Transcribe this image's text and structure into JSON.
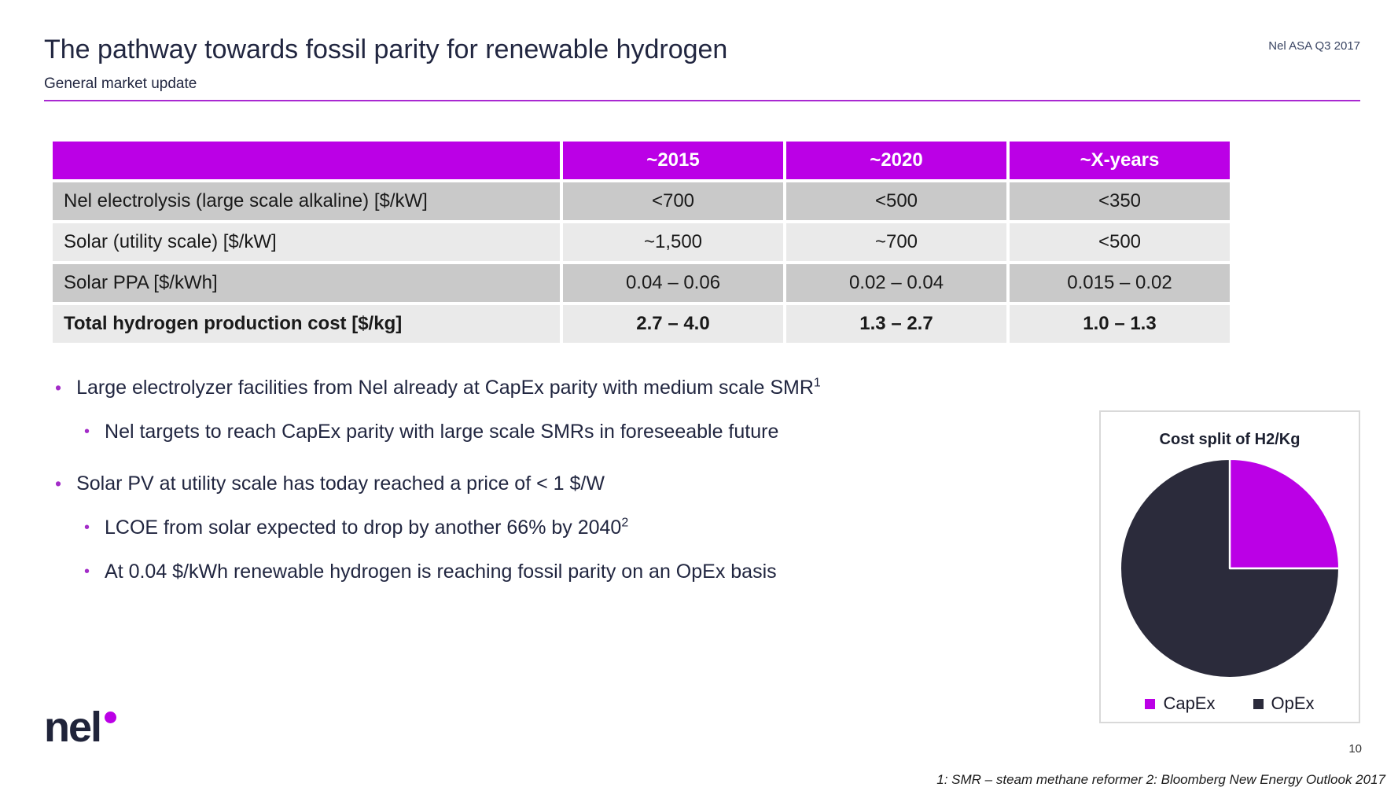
{
  "slide": {
    "title": "The pathway towards fossil parity for renewable hydrogen",
    "subtitle": "General market update",
    "corner_note": "Nel ASA Q3 2017",
    "page_number": "10",
    "footnote": "1: SMR – steam methane reformer 2: Bloomberg New Energy Outlook 2017",
    "logo_text": "nel"
  },
  "table": {
    "headers": [
      "",
      "~2015",
      "~2020",
      "~X-years"
    ],
    "rows": [
      {
        "label": "Nel electrolysis (large scale alkaline) [$/kW]",
        "values": [
          "<700",
          "<500",
          "<350"
        ]
      },
      {
        "label": "Solar (utility scale) [$/kW]",
        "values": [
          "~1,500",
          "~700",
          "<500"
        ]
      },
      {
        "label": "Solar PPA [$/kWh]",
        "values": [
          "0.04 – 0.06",
          "0.02 – 0.04",
          "0.015 – 0.02"
        ]
      },
      {
        "label": "Total hydrogen production cost [$/kg]",
        "values": [
          "2.7 – 4.0",
          "1.3 – 2.7",
          "1.0 – 1.3"
        ]
      }
    ]
  },
  "bullets": [
    {
      "level": 1,
      "text": "Large electrolyzer facilities from Nel already at CapEx parity with medium scale SMR",
      "superscript": "1"
    },
    {
      "level": 2,
      "text": "Nel targets to reach CapEx parity with large scale SMRs in foreseeable future",
      "superscript": ""
    },
    {
      "level": 1,
      "text": "Solar PV at utility scale has today reached a price of < 1 $/W",
      "superscript": ""
    },
    {
      "level": 2,
      "text": "LCOE from solar expected to drop by another 66% by 2040",
      "superscript": "2"
    },
    {
      "level": 2,
      "text": "At 0.04 $/kWh renewable hydrogen is reaching fossil parity on an OpEx basis",
      "superscript": ""
    }
  ],
  "chart_data": {
    "type": "pie",
    "title": "Cost split of H2/Kg",
    "slices": [
      {
        "label": "CapEx",
        "value": 25,
        "color": "#BB00E6"
      },
      {
        "label": "OpEx",
        "value": 75,
        "color": "#2B2B3B"
      }
    ],
    "start_angle": "top",
    "direction": "clockwise",
    "legend_position": "bottom"
  },
  "colors": {
    "accent": "#BB00E6",
    "accent_line": "#A929D1",
    "bullet": "#A32CC8",
    "text": "#212640",
    "table_text": "#1A1A1A",
    "row_dark": "#C9C9C9",
    "row_light": "#EAEAEA",
    "box_border": "#D9D9D9"
  }
}
